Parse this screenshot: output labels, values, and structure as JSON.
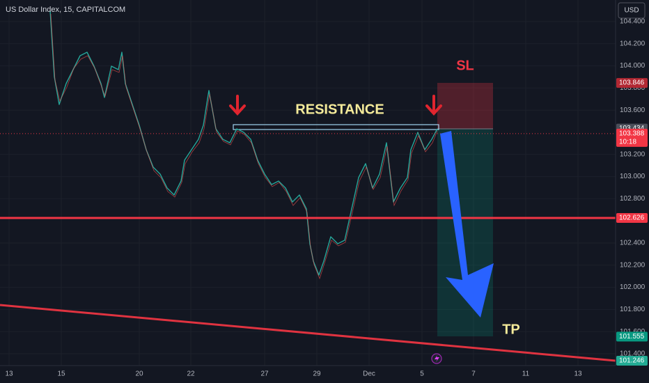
{
  "header": {
    "title": "US Dollar Index, 15, CAPITALCOM",
    "currency": "USD"
  },
  "price_scale": {
    "ylim": [
      104.595,
      101.293
    ],
    "yticks": [
      {
        "value": 104.4,
        "label": "104.400"
      },
      {
        "value": 104.2,
        "label": "104.200"
      },
      {
        "value": 104.0,
        "label": "104.000"
      },
      {
        "value": 103.8,
        "label": "103.800"
      },
      {
        "value": 103.6,
        "label": "103.600"
      },
      {
        "value": 103.2,
        "label": "103.200"
      },
      {
        "value": 103.0,
        "label": "103.000"
      },
      {
        "value": 102.8,
        "label": "102.800"
      },
      {
        "value": 102.4,
        "label": "102.400"
      },
      {
        "value": 102.2,
        "label": "102.200"
      },
      {
        "value": 102.0,
        "label": "102.000"
      },
      {
        "value": 101.8,
        "label": "101.800"
      },
      {
        "value": 101.6,
        "label": "101.600"
      },
      {
        "value": 101.4,
        "label": "101.400"
      }
    ]
  },
  "time_axis": {
    "labels": [
      "13",
      "15",
      "20",
      "22",
      "27",
      "29",
      "Dec",
      "5",
      "7",
      "11",
      "13"
    ]
  },
  "price_tags": [
    {
      "value": 103.846,
      "label": "103.846",
      "color": "#b22833"
    },
    {
      "value": 103.434,
      "label": "103.434",
      "color": "#4a4e59"
    },
    {
      "value": 103.388,
      "label": "103.388",
      "countdown": "10:18",
      "color": "#f23645"
    },
    {
      "value": 102.626,
      "label": "102.626",
      "color": "#f23645"
    },
    {
      "value": 101.555,
      "label": "101.555",
      "color": "#089981"
    },
    {
      "value": 101.246,
      "label": "101.246",
      "color": "#22ab94"
    }
  ],
  "annotations": {
    "resistance": "RESISTANCE",
    "stop_loss": "SL",
    "take_profit": "TP"
  }
}
